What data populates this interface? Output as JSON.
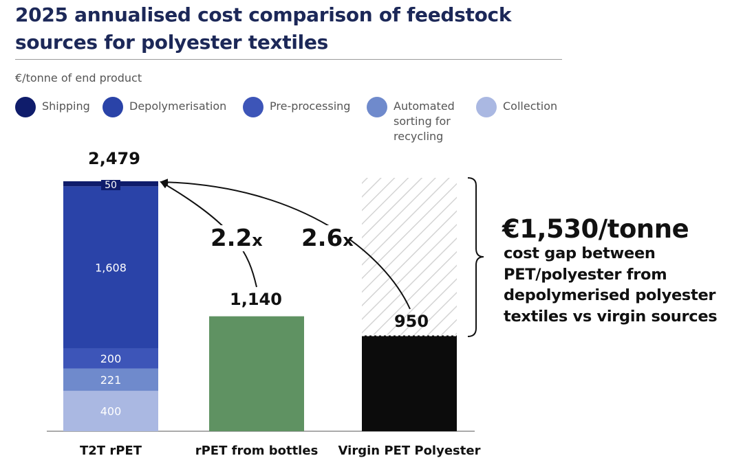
{
  "header": {
    "title": "2025 annualised cost comparison of feedstock sources for polyester textiles",
    "unit": "€/tonne of end product"
  },
  "legend": [
    {
      "label": "Shipping",
      "color": "#0f1c6b"
    },
    {
      "label": "Depolymerisation",
      "color": "#2a43a8"
    },
    {
      "label": "Pre-processing",
      "color": "#3d55b8"
    },
    {
      "label": "Automated sorting for recycling",
      "color": "#6f8acc"
    },
    {
      "label": "Collection",
      "color": "#aab8e2"
    }
  ],
  "chart_data": {
    "type": "bar",
    "title": "2025 annualised cost comparison of feedstock sources for polyester textiles",
    "ylabel": "€/tonne of end product",
    "ylim": [
      0,
      2479
    ],
    "categories": [
      "T2T rPET",
      "rPET from bottles",
      "Virgin PET Polyester"
    ],
    "stacked": {
      "category": "T2T rPET",
      "segments": [
        {
          "name": "Collection",
          "value": 400,
          "color": "#aab8e2"
        },
        {
          "name": "Automated sorting for recycling",
          "value": 221,
          "color": "#6f8acc"
        },
        {
          "name": "Pre-processing",
          "value": 200,
          "color": "#3d55b8"
        },
        {
          "name": "Depolymerisation",
          "value": 1608,
          "color": "#2a43a8"
        },
        {
          "name": "Shipping",
          "value": 50,
          "color": "#0f1c6b"
        }
      ]
    },
    "bars": [
      {
        "category": "rPET from bottles",
        "value": 1140,
        "color": "#5f9262"
      },
      {
        "category": "Virgin PET Polyester",
        "value": 950,
        "color": "#0c0c0c"
      }
    ],
    "totals": [
      {
        "category": "T2T rPET",
        "label": "2,479"
      },
      {
        "category": "rPET from bottles",
        "label": "1,140"
      },
      {
        "category": "Virgin PET Polyester",
        "label": "950"
      }
    ],
    "segment_labels": [
      "400",
      "221",
      "200",
      "1,608",
      "50"
    ],
    "multipliers": [
      {
        "from": "rPET from bottles",
        "to": "T2T rPET",
        "number": "2.2",
        "suffix": "x"
      },
      {
        "from": "Virgin PET Polyester",
        "to": "T2T rPET",
        "number": "2.6",
        "suffix": "x"
      }
    ],
    "gap": {
      "value": 1530,
      "headline": "€1,530/tonne",
      "text": "cost gap between PET/polyester from depolymerised polyester textiles vs virgin sources"
    }
  }
}
